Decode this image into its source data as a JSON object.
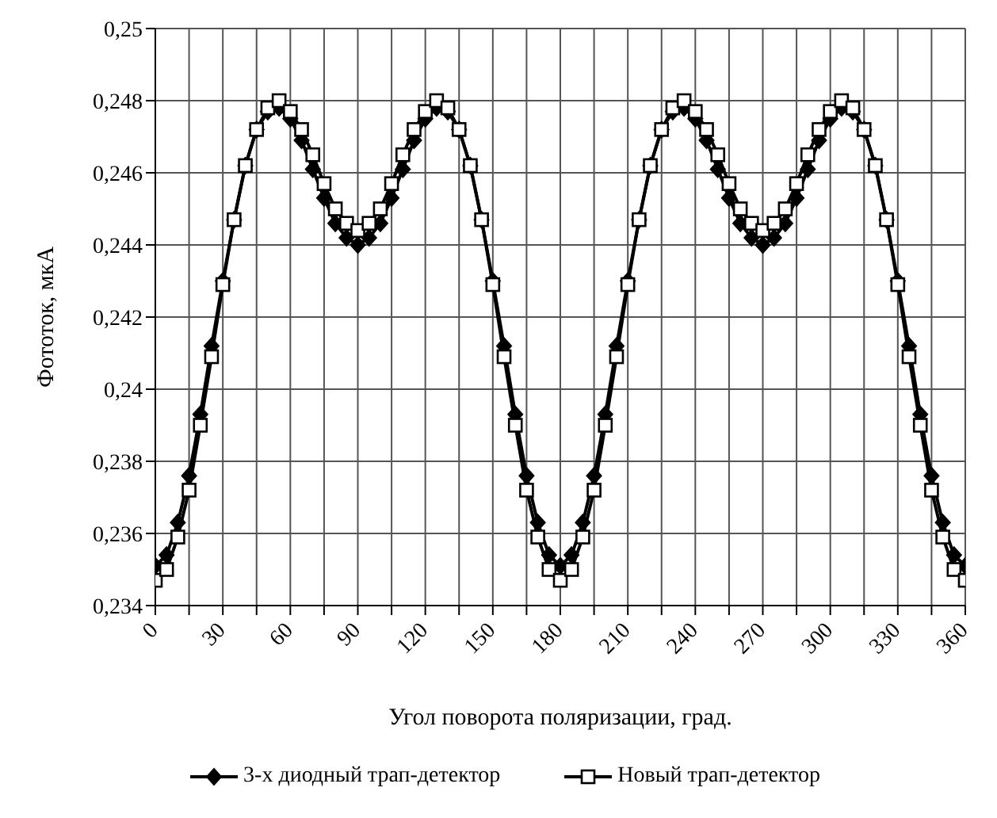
{
  "chart_data": {
    "type": "line",
    "xlabel": "Угол поворота поляризации, град.",
    "ylabel": "Фототок, мкА",
    "x": [
      0,
      5,
      10,
      15,
      20,
      25,
      30,
      35,
      40,
      45,
      50,
      55,
      60,
      65,
      70,
      75,
      80,
      85,
      90,
      95,
      100,
      105,
      110,
      115,
      120,
      125,
      130,
      135,
      140,
      145,
      150,
      155,
      160,
      165,
      170,
      175,
      180,
      185,
      190,
      195,
      200,
      205,
      210,
      215,
      220,
      225,
      230,
      235,
      240,
      245,
      250,
      255,
      260,
      265,
      270,
      275,
      280,
      285,
      290,
      295,
      300,
      305,
      310,
      315,
      320,
      325,
      330,
      335,
      340,
      345,
      350,
      355,
      360
    ],
    "series": [
      {
        "name": "3-х диодный трап-детектор",
        "color": "#000000",
        "marker": "diamond",
        "values": [
          0.2351,
          0.2354,
          0.2363,
          0.2376,
          0.2393,
          0.2412,
          0.243,
          0.2447,
          0.2462,
          0.2472,
          0.2477,
          0.2478,
          0.2475,
          0.2469,
          0.2461,
          0.2453,
          0.2446,
          0.2442,
          0.244,
          0.2442,
          0.2446,
          0.2453,
          0.2461,
          0.2469,
          0.2475,
          0.2478,
          0.2477,
          0.2472,
          0.2462,
          0.2447,
          0.243,
          0.2412,
          0.2393,
          0.2376,
          0.2363,
          0.2354,
          0.2351,
          0.2354,
          0.2363,
          0.2376,
          0.2393,
          0.2412,
          0.243,
          0.2447,
          0.2462,
          0.2472,
          0.2477,
          0.2478,
          0.2475,
          0.2469,
          0.2461,
          0.2453,
          0.2446,
          0.2442,
          0.244,
          0.2442,
          0.2446,
          0.2453,
          0.2461,
          0.2469,
          0.2475,
          0.2478,
          0.2477,
          0.2472,
          0.2462,
          0.2447,
          0.243,
          0.2412,
          0.2393,
          0.2376,
          0.2363,
          0.2354,
          0.2351
        ]
      },
      {
        "name": "Новый трап-детектор",
        "color": "#000000",
        "marker": "square",
        "values": [
          0.2347,
          0.235,
          0.2359,
          0.2372,
          0.239,
          0.2409,
          0.2429,
          0.2447,
          0.2462,
          0.2472,
          0.2478,
          0.248,
          0.2477,
          0.2472,
          0.2465,
          0.2457,
          0.245,
          0.2446,
          0.2444,
          0.2446,
          0.245,
          0.2457,
          0.2465,
          0.2472,
          0.2477,
          0.248,
          0.2478,
          0.2472,
          0.2462,
          0.2447,
          0.2429,
          0.2409,
          0.239,
          0.2372,
          0.2359,
          0.235,
          0.2347,
          0.235,
          0.2359,
          0.2372,
          0.239,
          0.2409,
          0.2429,
          0.2447,
          0.2462,
          0.2472,
          0.2478,
          0.248,
          0.2477,
          0.2472,
          0.2465,
          0.2457,
          0.245,
          0.2446,
          0.2444,
          0.2446,
          0.245,
          0.2457,
          0.2465,
          0.2472,
          0.2477,
          0.248,
          0.2478,
          0.2472,
          0.2462,
          0.2447,
          0.2429,
          0.2409,
          0.239,
          0.2372,
          0.2359,
          0.235,
          0.2347
        ]
      }
    ],
    "xlim": [
      0,
      360
    ],
    "xticks": [
      0,
      {
        "value": 15,
        "label": null
      },
      30,
      {
        "value": 45,
        "label": null
      },
      60,
      {
        "value": 75,
        "label": null
      },
      90,
      {
        "value": 105,
        "label": null
      },
      120,
      {
        "value": 135,
        "label": null
      },
      150,
      {
        "value": 165,
        "label": null
      },
      180,
      {
        "value": 195,
        "label": null
      },
      210,
      {
        "value": 225,
        "label": null
      },
      240,
      {
        "value": 255,
        "label": null
      },
      270,
      {
        "value": 285,
        "label": null
      },
      300,
      {
        "value": 315,
        "label": null
      },
      330,
      {
        "value": 345,
        "label": null
      },
      360
    ],
    "ylim": [
      0.234,
      0.25
    ],
    "yticks": [
      {
        "value": 0.234,
        "label": "0,234"
      },
      {
        "value": 0.236,
        "label": "0,236"
      },
      {
        "value": 0.238,
        "label": "0,238"
      },
      {
        "value": 0.24,
        "label": "0,24"
      },
      {
        "value": 0.242,
        "label": "0,242"
      },
      {
        "value": 0.244,
        "label": "0,244"
      },
      {
        "value": 0.246,
        "label": "0,246"
      },
      {
        "value": 0.248,
        "label": "0,248"
      },
      {
        "value": 0.25,
        "label": "0,25"
      }
    ],
    "grid": true,
    "legend": "bottom",
    "line_style": "solid"
  }
}
